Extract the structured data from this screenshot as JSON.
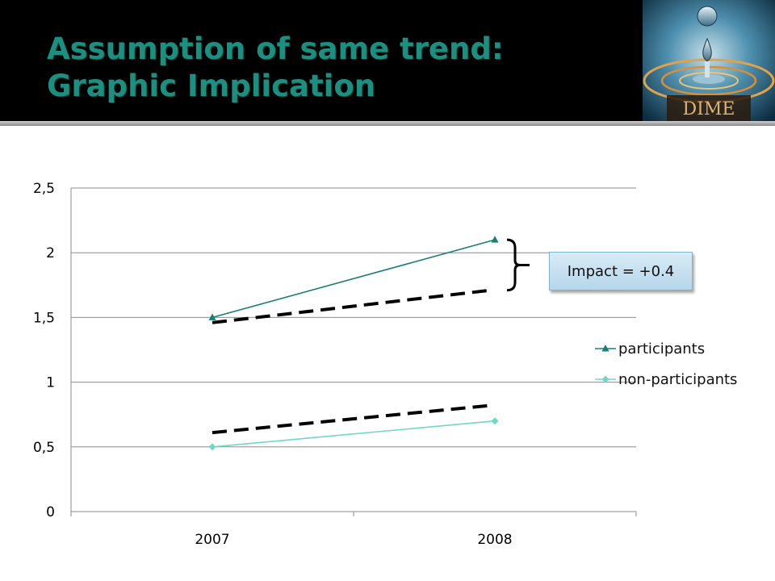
{
  "slide": {
    "title_line1": "Assumption of same trend:",
    "title_line2": "Graphic Implication",
    "logo_text": "DIME",
    "callout": "Impact = +0.4"
  },
  "colors": {
    "title": "#1b8f80",
    "participants": "#1a7f72",
    "non_participants": "#6ed8c8",
    "counterfactual": "#000000"
  },
  "chart_data": {
    "type": "line",
    "categories": [
      "2007",
      "2008"
    ],
    "ylim": [
      0,
      2.5
    ],
    "yticks": [
      "0",
      "0,5",
      "1",
      "1,5",
      "2",
      "2,5"
    ],
    "grid": true,
    "legend_position": "right",
    "series": [
      {
        "name": "participants",
        "values": [
          1.5,
          2.1
        ],
        "marker": "triangle"
      },
      {
        "name": "non-participants",
        "values": [
          0.5,
          0.7
        ],
        "marker": "diamond"
      }
    ],
    "counterfactual_lines": [
      {
        "values": [
          1.46,
          1.71
        ]
      },
      {
        "values": [
          0.61,
          0.82
        ]
      }
    ]
  }
}
